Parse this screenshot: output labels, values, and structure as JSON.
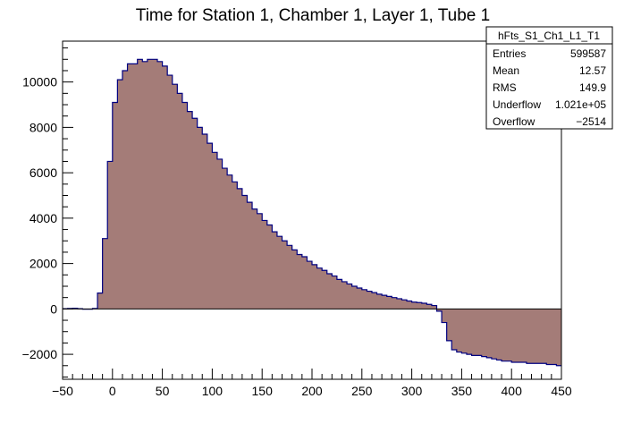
{
  "chart_data": {
    "type": "bar",
    "title": "Time for Station 1, Chamber 1, Layer 1, Tube 1",
    "xlabel": "",
    "ylabel": "",
    "xlim": [
      -50,
      450
    ],
    "ylim": [
      -3100,
      11800
    ],
    "bin_width": 5,
    "x_ticks": [
      -50,
      0,
      50,
      100,
      150,
      200,
      250,
      300,
      350,
      400,
      450
    ],
    "x_tick_labels": [
      "−50",
      "0",
      "50",
      "100",
      "150",
      "200",
      "250",
      "300",
      "350",
      "400",
      "450"
    ],
    "y_ticks": [
      -2000,
      0,
      2000,
      4000,
      6000,
      8000,
      10000
    ],
    "y_tick_labels": [
      "−2000",
      "0",
      "2000",
      "4000",
      "6000",
      "8000",
      "10000"
    ],
    "grid": false,
    "fill_color": "#a47c78",
    "line_color": "#000080",
    "series": [
      {
        "x_start": -50,
        "values": [
          10,
          20,
          30,
          10,
          -10,
          -10,
          20,
          700,
          3100,
          6500,
          9100,
          10100,
          10500,
          10800,
          10800,
          11000,
          10900,
          11000,
          11000,
          10900,
          10700,
          10300,
          9900,
          9500,
          9100,
          8700,
          8400,
          8000,
          7700,
          7300,
          6900,
          6600,
          6200,
          5900,
          5600,
          5300,
          5000,
          4700,
          4400,
          4200,
          3900,
          3700,
          3400,
          3200,
          3000,
          2800,
          2600,
          2400,
          2300,
          2100,
          1950,
          1800,
          1700,
          1550,
          1450,
          1300,
          1200,
          1100,
          1000,
          920,
          850,
          780,
          720,
          650,
          600,
          550,
          500,
          450,
          400,
          350,
          300,
          280,
          250,
          200,
          150,
          -100,
          -600,
          -1400,
          -1800,
          -1900,
          -1950,
          -2000,
          -2050,
          -2050,
          -2100,
          -2150,
          -2200,
          -2250,
          -2300,
          -2300,
          -2350,
          -2350,
          -2350,
          -2400,
          -2400,
          -2400,
          -2400,
          -2450,
          -2450,
          -2500
        ]
      }
    ]
  },
  "stats": {
    "name": "hFts_S1_Ch1_L1_T1",
    "rows": [
      {
        "label": "Entries",
        "value": "599587"
      },
      {
        "label": "Mean",
        "value": "12.57"
      },
      {
        "label": "RMS",
        "value": "149.9"
      },
      {
        "label": "Underflow",
        "value": "1.021e+05"
      },
      {
        "label": "Overflow",
        "value": "−2514"
      }
    ]
  }
}
